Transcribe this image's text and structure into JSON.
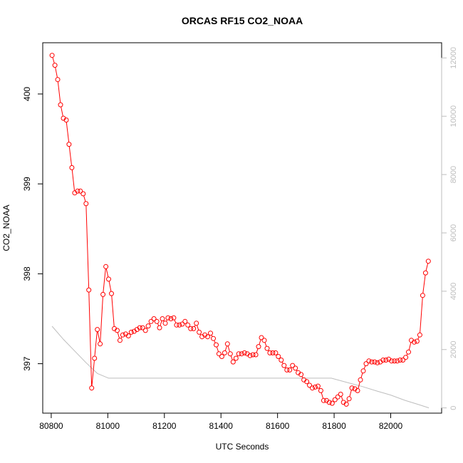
{
  "chart_data": {
    "type": "line",
    "title": "ORCAS RF15 CO2_NOAA",
    "xlabel": "UTC Seconds",
    "ylabel": "CO2_NOAA",
    "xlim": [
      80770,
      82180
    ],
    "ylim": [
      396.45,
      400.57
    ],
    "y2lim": [
      -180,
      12520
    ],
    "x_ticks": [
      80800,
      81000,
      81200,
      81400,
      81600,
      81800,
      82000
    ],
    "y_ticks": [
      397,
      398,
      399,
      400
    ],
    "y2_ticks": [
      0,
      2000,
      4000,
      6000,
      8000,
      10000,
      12000
    ],
    "colors": {
      "co2": "#ff0000",
      "altitude": "#bebebe",
      "axis": "#000000",
      "right_axis": "#bdbdbd"
    },
    "series": [
      {
        "axis": "left",
        "style": "points+line",
        "x": [
          80803,
          80813,
          80823,
          80833,
          80843,
          80853,
          80863,
          80873,
          80883,
          80893,
          80903,
          80913,
          80923,
          80933,
          80943,
          80953,
          80963,
          80973,
          80983,
          80993,
          81003,
          81013,
          81023,
          81033,
          81043,
          81053,
          81063,
          81073,
          81083,
          81093,
          81103,
          81113,
          81123,
          81133,
          81143,
          81153,
          81163,
          81173,
          81183,
          81193,
          81203,
          81213,
          81223,
          81233,
          81243,
          81253,
          81263,
          81273,
          81283,
          81293,
          81303,
          81313,
          81323,
          81333,
          81343,
          81353,
          81363,
          81373,
          81383,
          81393,
          81403,
          81413,
          81423,
          81433,
          81443,
          81453,
          81463,
          81473,
          81483,
          81493,
          81503,
          81513,
          81523,
          81533,
          81543,
          81553,
          81563,
          81573,
          81583,
          81593,
          81603,
          81613,
          81623,
          81633,
          81643,
          81653,
          81663,
          81673,
          81683,
          81693,
          81703,
          81713,
          81723,
          81733,
          81743,
          81753,
          81763,
          81773,
          81783,
          81793,
          81803,
          81813,
          81823,
          81833,
          81843,
          81853,
          81863,
          81873,
          81883,
          81893,
          81903,
          81913,
          81923,
          81933,
          81943,
          81953,
          81963,
          81973,
          81983,
          81993,
          82003,
          82013,
          82023,
          82033,
          82043,
          82053,
          82063,
          82073,
          82083,
          82093,
          82103,
          82113,
          82123,
          82133
        ],
        "y": [
          400.43,
          400.32,
          400.16,
          399.88,
          399.73,
          399.71,
          399.44,
          399.18,
          398.9,
          398.92,
          398.92,
          398.89,
          398.78,
          397.82,
          396.73,
          397.06,
          397.38,
          397.22,
          397.77,
          398.08,
          397.94,
          397.78,
          397.39,
          397.37,
          397.26,
          397.32,
          397.33,
          397.31,
          397.35,
          397.36,
          397.38,
          397.4,
          397.4,
          397.37,
          397.42,
          397.47,
          397.5,
          397.47,
          397.4,
          397.5,
          397.45,
          397.51,
          397.5,
          397.51,
          397.43,
          397.43,
          397.44,
          397.47,
          397.43,
          397.39,
          397.39,
          397.45,
          397.35,
          397.3,
          397.32,
          397.3,
          397.34,
          397.28,
          397.21,
          397.11,
          397.08,
          397.12,
          397.22,
          397.11,
          397.02,
          397.06,
          397.11,
          397.11,
          397.12,
          397.11,
          397.09,
          397.1,
          397.1,
          397.19,
          397.29,
          397.26,
          397.17,
          397.12,
          397.12,
          397.12,
          397.08,
          397.04,
          396.98,
          396.93,
          396.93,
          396.98,
          396.95,
          396.9,
          396.88,
          396.82,
          396.8,
          396.76,
          396.73,
          396.74,
          396.75,
          396.7,
          396.59,
          396.59,
          396.57,
          396.56,
          396.6,
          396.63,
          396.66,
          396.57,
          396.55,
          396.61,
          396.73,
          396.72,
          396.7,
          396.82,
          396.92,
          397.0,
          397.03,
          397.02,
          397.02,
          397.01,
          397.02,
          397.04,
          397.04,
          397.05,
          397.03,
          397.03,
          397.03,
          397.04,
          397.04,
          397.07,
          397.13,
          397.26,
          397.24,
          397.25,
          397.32,
          397.76,
          398.01,
          398.14
        ]
      },
      {
        "axis": "right",
        "style": "line",
        "x": [
          80803,
          80843,
          80883,
          80923,
          80963,
          81003,
          81200,
          81500,
          81790,
          81850,
          81900,
          81950,
          82000,
          82050,
          82100,
          82135
        ],
        "y": [
          2800,
          2350,
          1950,
          1550,
          1180,
          1020,
          1020,
          1020,
          1020,
          860,
          730,
          580,
          440,
          260,
          110,
          0
        ]
      }
    ]
  }
}
